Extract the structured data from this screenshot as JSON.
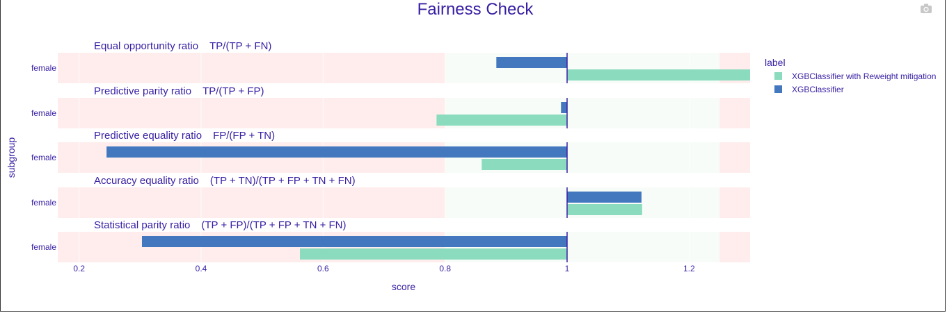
{
  "chart_data": {
    "type": "bar",
    "orientation": "horizontal",
    "title": "Fairness Check",
    "xlabel": "score",
    "ylabel": "subgroup",
    "xlim": [
      0.165,
      1.3
    ],
    "xticks": [
      0.2,
      0.4,
      0.6,
      0.8,
      1,
      1.2
    ],
    "xtick_labels": [
      "0.2",
      "0.4",
      "0.6",
      "0.8",
      "1",
      "1.2"
    ],
    "base": 1,
    "fair_range": [
      0.8,
      1.25
    ],
    "colors": {
      "XGBClassifier": "#4378bf",
      "XGBClassifier with Reweight mitigation": "#8bdcbe",
      "unfair_band": "#ffeded",
      "fair_band": "#f7fcf8",
      "base_line": "#371ea3",
      "text": "#371ea3"
    },
    "legend": {
      "title": "label",
      "position": "top-right",
      "items": [
        "XGBClassifier with Reweight mitigation",
        "XGBClassifier"
      ]
    },
    "panels": [
      {
        "metric": "Equal opportunity ratio",
        "formula": "TP/(TP + FN)",
        "subgroup": "female",
        "series": [
          {
            "name": "XGBClassifier",
            "value": 0.884
          },
          {
            "name": "XGBClassifier with Reweight mitigation",
            "value": 1.32
          }
        ]
      },
      {
        "metric": "Predictive parity ratio",
        "formula": "TP/(TP + FP)",
        "subgroup": "female",
        "series": [
          {
            "name": "XGBClassifier",
            "value": 0.99
          },
          {
            "name": "XGBClassifier with Reweight mitigation",
            "value": 0.786
          }
        ]
      },
      {
        "metric": "Predictive equality ratio",
        "formula": "FP/(FP + TN)",
        "subgroup": "female",
        "series": [
          {
            "name": "XGBClassifier",
            "value": 0.245
          },
          {
            "name": "XGBClassifier with Reweight mitigation",
            "value": 0.86
          }
        ]
      },
      {
        "metric": "Accuracy equality ratio",
        "formula": "(TP + TN)/(TP + FP + TN + FN)",
        "subgroup": "female",
        "series": [
          {
            "name": "XGBClassifier",
            "value": 1.122
          },
          {
            "name": "XGBClassifier with Reweight mitigation",
            "value": 1.123
          }
        ]
      },
      {
        "metric": "Statistical parity ratio",
        "formula": "(TP + FP)/(TP + FP + TN + FN)",
        "subgroup": "female",
        "series": [
          {
            "name": "XGBClassifier",
            "value": 0.303
          },
          {
            "name": "XGBClassifier with Reweight mitigation",
            "value": 0.562
          }
        ]
      }
    ]
  },
  "toolbar": {
    "camera_icon": "camera-icon"
  }
}
